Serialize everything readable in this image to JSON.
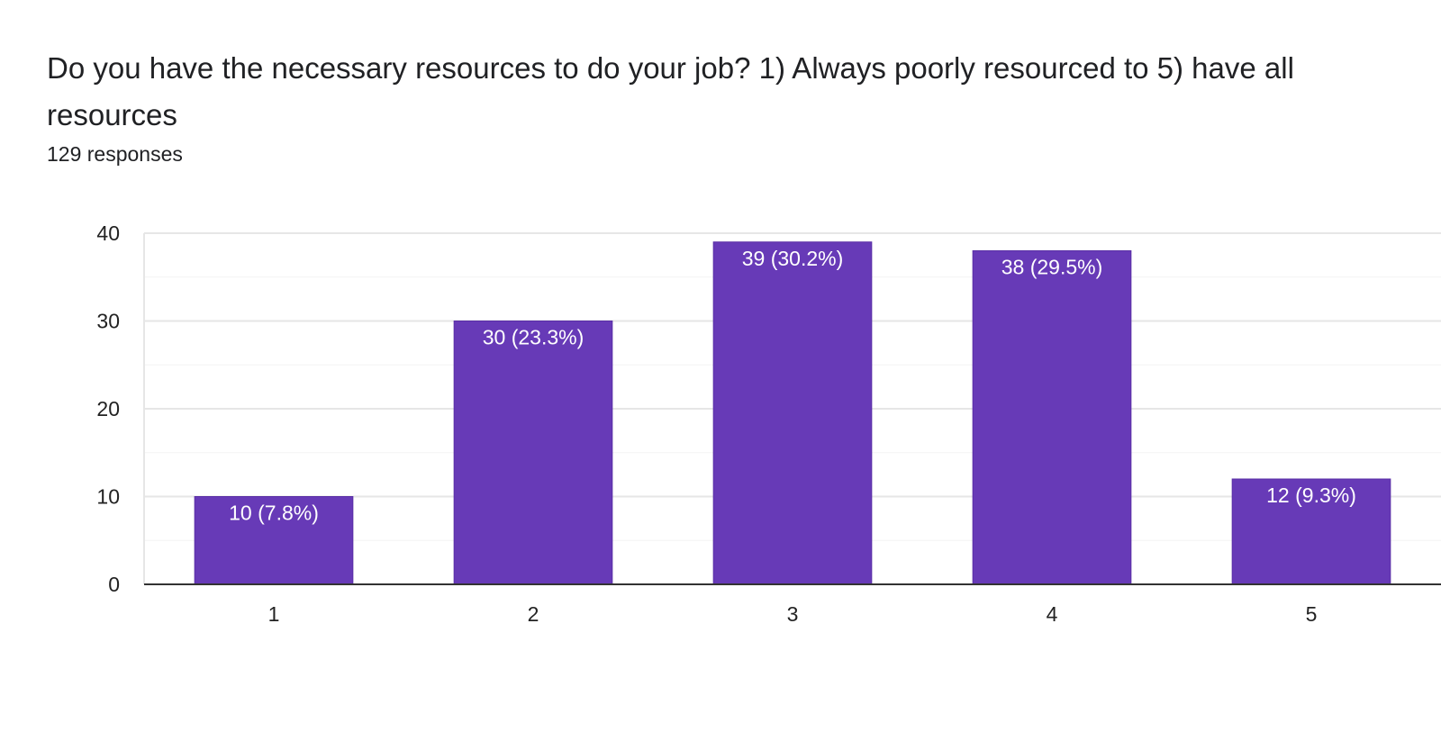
{
  "question": {
    "title": "Do you have the necessary resources to do your job? 1) Always poorly resourced to 5) have all resources",
    "responses": "129 responses"
  },
  "colors": {
    "bar": "#673ab7",
    "bar_label": "#ffffff",
    "grid_major": "#e6e6e6",
    "grid_minor": "#f3f3f3",
    "axis": "#333333",
    "tick_text": "#222222"
  },
  "chart_data": {
    "type": "bar",
    "categories": [
      "1",
      "2",
      "3",
      "4",
      "5"
    ],
    "values": [
      10,
      30,
      39,
      38,
      12
    ],
    "labels": [
      "10 (7.8%)",
      "30 (23.3%)",
      "39 (30.2%)",
      "38 (29.5%)",
      "12 (9.3%)"
    ],
    "yticks": [
      "0",
      "10",
      "20",
      "30",
      "40"
    ],
    "ylim": [
      0,
      40
    ],
    "grid": true,
    "title": "",
    "xlabel": "",
    "ylabel": ""
  }
}
